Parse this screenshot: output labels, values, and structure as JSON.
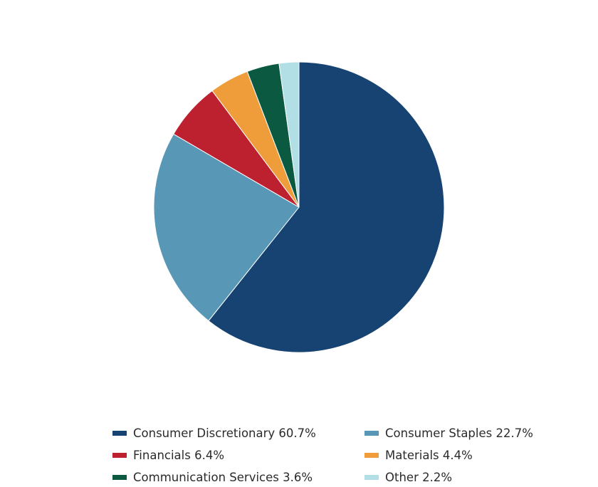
{
  "chart_data": {
    "type": "pie",
    "title": "",
    "start_angle_deg": 0,
    "direction": "clockwise",
    "slices": [
      {
        "label": "Consumer Discretionary",
        "value": 60.7,
        "display": "Consumer Discretionary 60.7%",
        "color": "#174372"
      },
      {
        "label": "Consumer Staples",
        "value": 22.7,
        "display": "Consumer Staples 22.7%",
        "color": "#5897b6"
      },
      {
        "label": "Financials",
        "value": 6.4,
        "display": "Financials 6.4%",
        "color": "#bd2130"
      },
      {
        "label": "Materials",
        "value": 4.4,
        "display": "Materials 4.4%",
        "color": "#ef9c3a"
      },
      {
        "label": "Communication Services",
        "value": 3.6,
        "display": "Communication Services 3.6%",
        "color": "#0a5940"
      },
      {
        "label": "Other",
        "value": 2.2,
        "display": "Other 2.2%",
        "color": "#b2dfe5"
      }
    ],
    "legend_position": "bottom",
    "legend_columns": 2
  }
}
